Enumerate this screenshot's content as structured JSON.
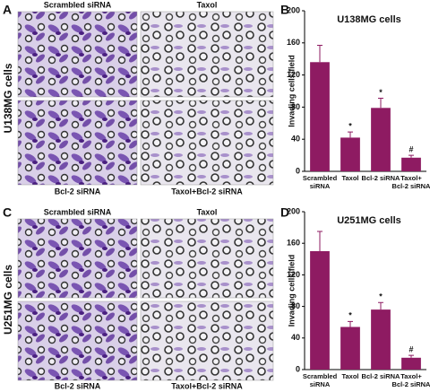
{
  "panel_labels": [
    "A",
    "B",
    "C",
    "D"
  ],
  "image_panels": [
    {
      "side_label": "U138MG cells",
      "labels": [
        "Scrambled siRNA",
        "Taxol",
        "Bcl-2 siRNA",
        "Taxol+Bcl-2 siRNA"
      ]
    },
    {
      "side_label": "U251MG cells",
      "labels": [
        "Scrambled siRNA",
        "Taxol",
        "Bcl-2 siRNA",
        "Taxol+Bcl-2 siRNA"
      ]
    }
  ],
  "chart_data": [
    {
      "type": "bar",
      "title": "U138MG cells",
      "y_label": "Invading cells/field",
      "categories": [
        "Scrambled\nsiRNA",
        "Taxol",
        "Bcl-2 siRNA",
        "Taxol+\nBcl-2 siRNA"
      ],
      "values": [
        136,
        42,
        79,
        17
      ],
      "errors": [
        21,
        7,
        12,
        3
      ],
      "annotations": [
        null,
        "*",
        "*",
        "#"
      ],
      "color": "#8e1b62",
      "ylim": [
        0,
        200
      ],
      "yticks": [
        0,
        40,
        80,
        120,
        160,
        200
      ]
    },
    {
      "type": "bar",
      "title": "U251MG cells",
      "y_label": "Invading cells/field",
      "categories": [
        "Scrambled\nsiRNA",
        "Taxol",
        "Bcl-2 siRNA",
        "Taxol+\nBcl-2 siRNA"
      ],
      "values": [
        150,
        54,
        76,
        15
      ],
      "errors": [
        25,
        7,
        9,
        3
      ],
      "annotations": [
        null,
        "*",
        "*",
        "#"
      ],
      "color": "#8e1b62",
      "ylim": [
        0,
        200
      ],
      "yticks": [
        0,
        40,
        80,
        120,
        160,
        200
      ]
    }
  ]
}
